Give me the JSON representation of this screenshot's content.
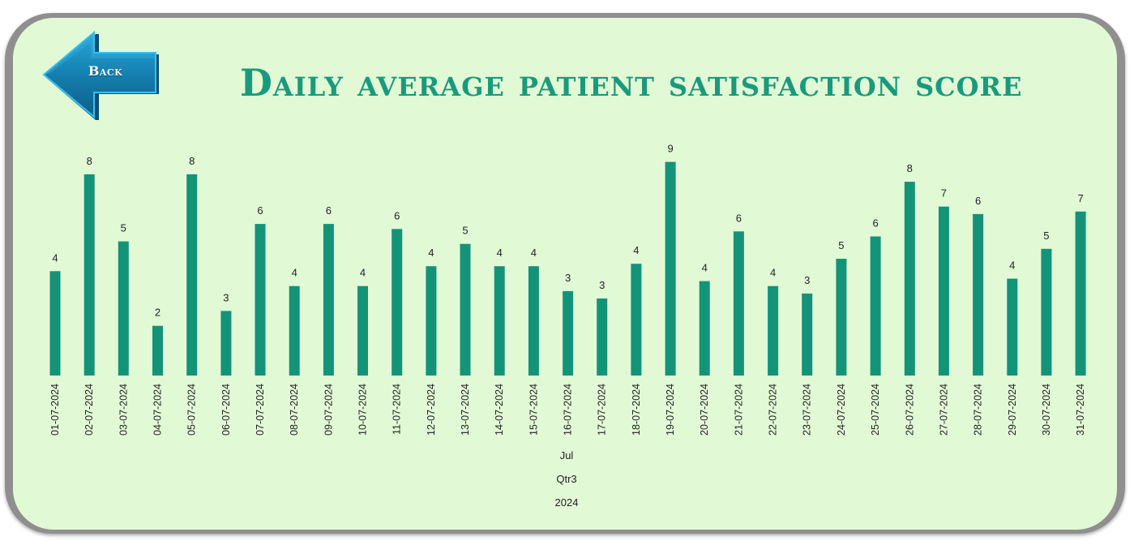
{
  "back_button": {
    "label": "Back"
  },
  "colors": {
    "bar": "#139479",
    "title": "#1a9a7c",
    "panel": "#e2f9d6",
    "label": "#222222",
    "button": "#1583b3"
  },
  "chart_data": {
    "type": "bar",
    "title": "Daily average patient satisfaction score",
    "categories": [
      "01-07-2024",
      "02-07-2024",
      "03-07-2024",
      "04-07-2024",
      "05-07-2024",
      "06-07-2024",
      "07-07-2024",
      "08-07-2024",
      "09-07-2024",
      "10-07-2024",
      "11-07-2024",
      "12-07-2024",
      "13-07-2024",
      "14-07-2024",
      "15-07-2024",
      "16-07-2024",
      "17-07-2024",
      "18-07-2024",
      "19-07-2024",
      "20-07-2024",
      "21-07-2024",
      "22-07-2024",
      "23-07-2024",
      "24-07-2024",
      "25-07-2024",
      "26-07-2024",
      "27-07-2024",
      "28-07-2024",
      "29-07-2024",
      "30-07-2024",
      "31-07-2024"
    ],
    "values": [
      4.2,
      8.1,
      5.4,
      2.0,
      8.1,
      2.6,
      6.1,
      3.6,
      6.1,
      3.6,
      5.9,
      4.4,
      5.3,
      4.4,
      4.4,
      3.4,
      3.1,
      4.5,
      8.6,
      3.8,
      5.8,
      3.6,
      3.3,
      4.7,
      5.6,
      7.8,
      6.8,
      6.5,
      3.9,
      5.1,
      6.6
    ],
    "data_labels": [
      "4",
      "8",
      "5",
      "2",
      "8",
      "3",
      "6",
      "4",
      "6",
      "4",
      "6",
      "4",
      "5",
      "4",
      "4",
      "3",
      "3",
      "4",
      "9",
      "4",
      "6",
      "4",
      "3",
      "5",
      "6",
      "8",
      "7",
      "6",
      "4",
      "5",
      "7"
    ],
    "axis_groups": {
      "month": "Jul",
      "quarter": "Qtr3",
      "year": "2024"
    },
    "xlabel": "",
    "ylabel": "",
    "ylim": [
      0,
      9.5
    ],
    "grid": false,
    "legend": "none"
  }
}
